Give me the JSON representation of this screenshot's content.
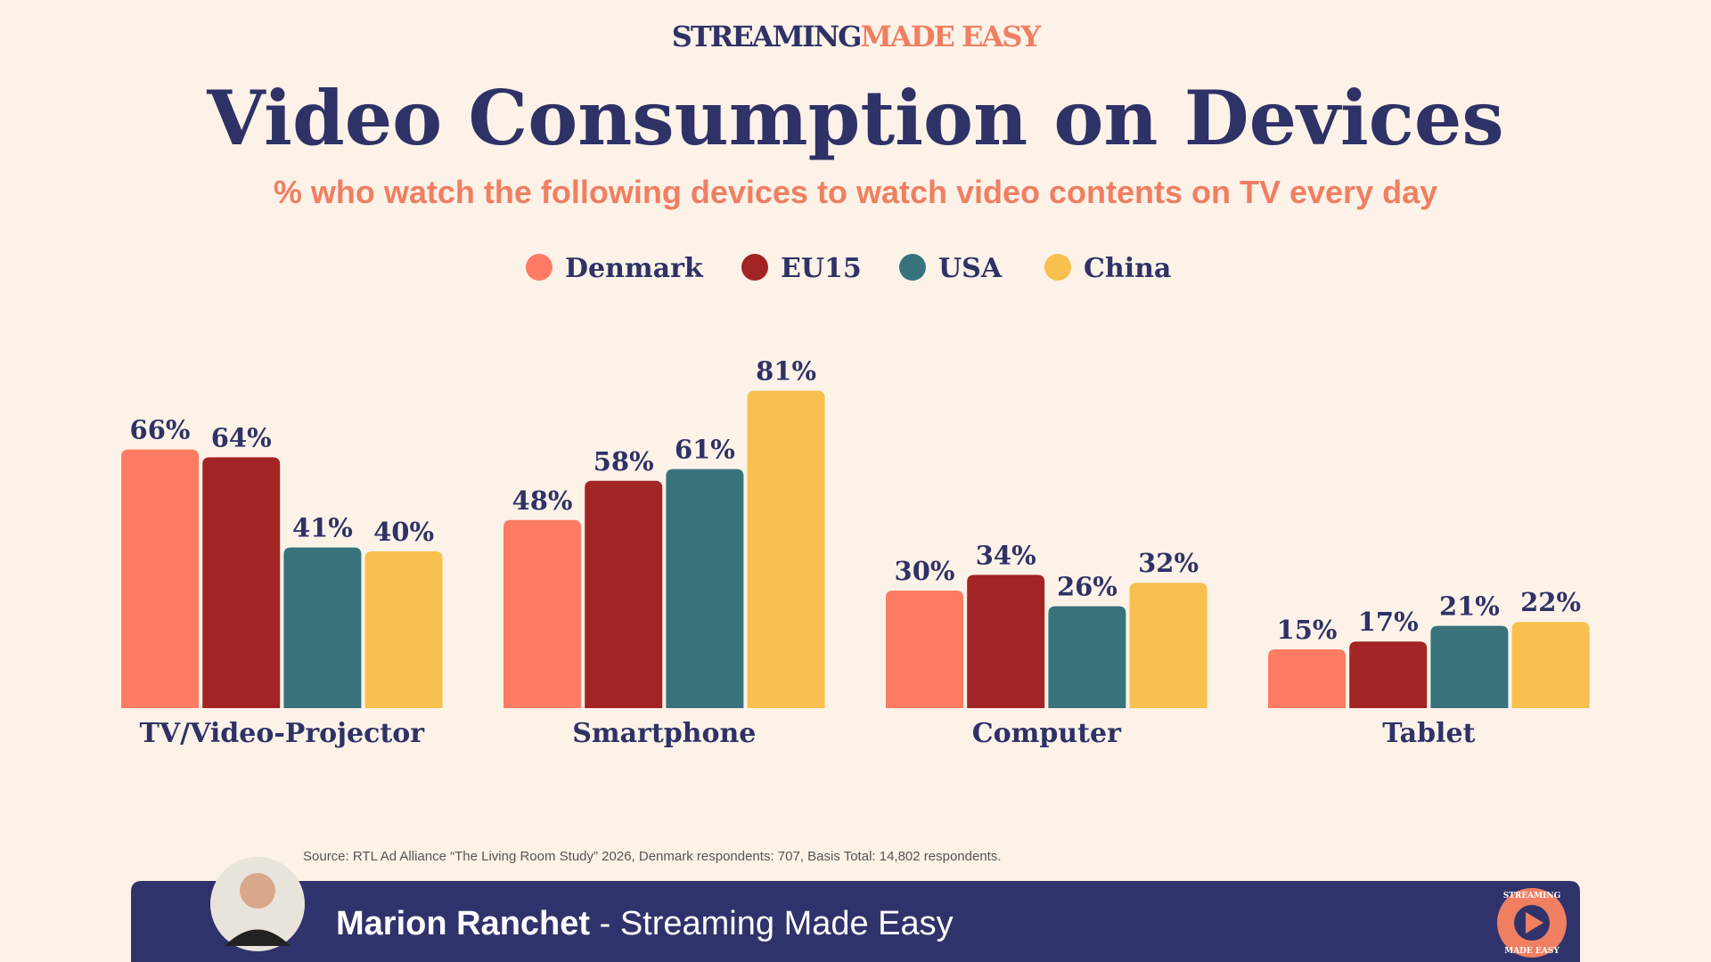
{
  "brand": {
    "part1": "STREAMING",
    "part2": "MADE EASY"
  },
  "chart_data": {
    "type": "bar",
    "title": "Video Consumption on Devices",
    "subtitle": "% who watch the following devices to watch video contents on TV every day",
    "categories": [
      "TV/Video-Projector",
      "Smartphone",
      "Computer",
      "Tablet"
    ],
    "series": [
      {
        "name": "Denmark",
        "color": "#fe7b63",
        "values": [
          66,
          48,
          30,
          15
        ],
        "value_labels": [
          "66%",
          "48%",
          "30%",
          "15%"
        ]
      },
      {
        "name": "EU15",
        "color": "#a22424",
        "values": [
          64,
          58,
          34,
          17
        ],
        "value_labels": [
          "64%",
          "58%",
          "34%",
          "17%"
        ]
      },
      {
        "name": "USA",
        "color": "#38737c",
        "values": [
          41,
          61,
          26,
          21
        ],
        "value_labels": [
          "41%",
          "61%",
          "26%",
          "21%"
        ]
      },
      {
        "name": "China",
        "color": "#f8c04e",
        "values": [
          40,
          81,
          32,
          22
        ],
        "value_labels": [
          "40%",
          "81%",
          "32%",
          "22%"
        ]
      }
    ],
    "legend": "top"
  },
  "source": "Source: RTL Ad Alliance “The Living Room Study” 2026, Denmark respondents: 707, Basis Total: 14,802 respondents.",
  "footer": {
    "name": "Marion Ranchet",
    "tagline": " - Streaming Made Easy",
    "logo_top": "STREAMING",
    "logo_bottom": "MADE EASY"
  }
}
